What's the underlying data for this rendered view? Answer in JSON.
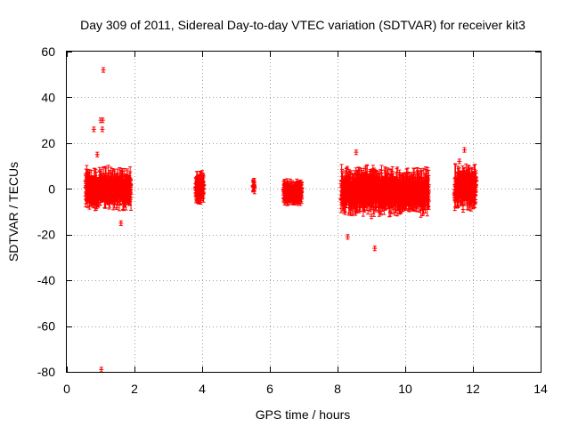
{
  "chart_data": {
    "type": "scatter",
    "title": "Day 309 of 2011, Sidereal Day-to-day VTEC variation (SDTVAR) for receiver kit3",
    "xlabel": "GPS time / hours",
    "ylabel": "SDTVAR / TECUs",
    "xlim": [
      0,
      14
    ],
    "ylim": [
      -80,
      60
    ],
    "xticks": [
      0,
      2,
      4,
      6,
      8,
      10,
      12,
      14
    ],
    "yticks": [
      -80,
      -60,
      -40,
      -20,
      0,
      20,
      40,
      60
    ],
    "grid": true,
    "marker": "+",
    "error_bars": true,
    "color": "#ff0000",
    "clusters": [
      {
        "x_range": [
          0.55,
          1.9
        ],
        "y_range": [
          -8,
          8
        ],
        "outliers": [
          [
            1.08,
            52
          ],
          [
            1.0,
            30
          ],
          [
            1.06,
            30
          ],
          [
            0.8,
            26
          ],
          [
            1.05,
            26
          ],
          [
            1.02,
            -79
          ],
          [
            0.9,
            15
          ],
          [
            1.6,
            -15
          ]
        ]
      },
      {
        "x_range": [
          3.8,
          4.05
        ],
        "y_range": [
          -5,
          6
        ],
        "outliers": [
          [
            4.0,
            7
          ]
        ]
      },
      {
        "x_range": [
          5.5,
          5.55
        ],
        "y_range": [
          -1,
          3
        ],
        "outliers": []
      },
      {
        "x_range": [
          6.4,
          6.95
        ],
        "y_range": [
          -6,
          3
        ],
        "outliers": []
      },
      {
        "x_range": [
          8.1,
          10.7
        ],
        "y_range": [
          -10,
          8
        ],
        "outliers": [
          [
            8.55,
            16
          ],
          [
            8.3,
            -21
          ],
          [
            9.1,
            -26
          ],
          [
            9.0,
            -12
          ],
          [
            8.4,
            -8
          ]
        ]
      },
      {
        "x_range": [
          11.45,
          12.1
        ],
        "y_range": [
          -8,
          9
        ],
        "outliers": [
          [
            11.75,
            17
          ],
          [
            11.6,
            12
          ],
          [
            11.9,
            -7
          ]
        ]
      }
    ]
  }
}
